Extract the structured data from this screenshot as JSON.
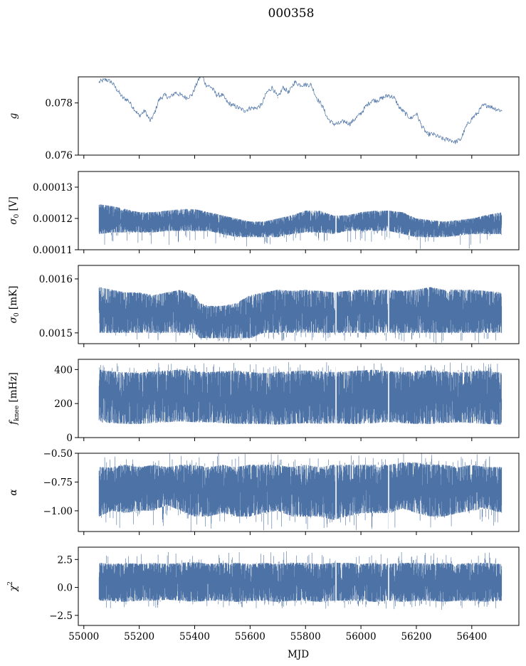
{
  "figure": {
    "title": "000358",
    "xlabel": "MJD",
    "line_color": "#4c72a6"
  },
  "chart_data": [
    {
      "type": "line",
      "ylabel": "g",
      "ylabel_symbol": "g",
      "ylabel_sub": "",
      "ylabel_unit": "",
      "xlim": [
        54980,
        56570
      ],
      "ylim": [
        0.076,
        0.079
      ],
      "yticks": [
        0.076,
        0.078
      ],
      "ytick_labels": [
        "0.076",
        "0.078"
      ],
      "show_xticklabels": false,
      "style": "thin",
      "series": [
        {
          "x": [
            55055,
            55080,
            55100,
            55120,
            55140,
            55160,
            55180,
            55200,
            55220,
            55240,
            55255,
            55270,
            55290,
            55310,
            55330,
            55350,
            55370,
            55390,
            55410,
            55425,
            55440,
            55460,
            55480,
            55500,
            55520,
            55540,
            55560,
            55580,
            55600,
            55620,
            55640,
            55660,
            55680,
            55700,
            55720,
            55740,
            55760,
            55780,
            55800,
            55820,
            55840,
            55860,
            55880,
            55900,
            55920,
            55940,
            55960,
            55980,
            56000,
            56020,
            56040,
            56060,
            56080,
            56100,
            56120,
            56140,
            56160,
            56180,
            56200,
            56220,
            56240,
            56260,
            56280,
            56300,
            56320,
            56340,
            56360,
            56380,
            56400,
            56420,
            56440,
            56460,
            56480,
            56508
          ],
          "y": [
            0.0788,
            0.0789,
            0.0788,
            0.0785,
            0.0782,
            0.0781,
            0.0778,
            0.0775,
            0.0777,
            0.0773,
            0.0776,
            0.0781,
            0.0783,
            0.0782,
            0.0784,
            0.0783,
            0.0782,
            0.0783,
            0.0788,
            0.0791,
            0.0787,
            0.0786,
            0.0783,
            0.0783,
            0.078,
            0.0779,
            0.0778,
            0.0777,
            0.0778,
            0.0778,
            0.0779,
            0.0784,
            0.0786,
            0.0782,
            0.0786,
            0.0784,
            0.0788,
            0.0787,
            0.0787,
            0.0787,
            0.0782,
            0.0779,
            0.0774,
            0.0772,
            0.0772,
            0.0773,
            0.0772,
            0.0774,
            0.0776,
            0.0779,
            0.0781,
            0.0781,
            0.0782,
            0.0783,
            0.0782,
            0.0778,
            0.0776,
            0.0774,
            0.0776,
            0.0771,
            0.0768,
            0.0768,
            0.0767,
            0.0766,
            0.0766,
            0.0765,
            0.0766,
            0.0771,
            0.0774,
            0.0776,
            0.0779,
            0.0779,
            0.0778,
            0.0777
          ]
        }
      ]
    },
    {
      "type": "line",
      "ylabel": "σ0 [V]",
      "ylabel_symbol": "σ",
      "ylabel_sub": "0",
      "ylabel_unit": "[V]",
      "xlim": [
        54980,
        56570
      ],
      "ylim": [
        0.00011,
        0.000135
      ],
      "yticks": [
        0.00011,
        0.00012,
        0.00013
      ],
      "ytick_labels": [
        "0.00011",
        "0.00012",
        "0.00013"
      ],
      "show_xticklabels": false,
      "style": "band",
      "series": [
        {
          "x": [
            55055,
            55100,
            55150,
            55200,
            55250,
            55300,
            55350,
            55400,
            55450,
            55500,
            55550,
            55600,
            55650,
            55700,
            55750,
            55800,
            55850,
            55900,
            55950,
            56000,
            56050,
            56100,
            56150,
            56200,
            56250,
            56300,
            56350,
            56400,
            56450,
            56508
          ],
          "y_lower": [
            0.000115,
            0.0001155,
            0.0001155,
            0.0001155,
            0.0001155,
            0.000116,
            0.000116,
            0.000116,
            0.000116,
            0.000115,
            0.000114,
            0.000114,
            0.000114,
            0.000114,
            0.000115,
            0.0001155,
            0.0001155,
            0.000115,
            0.000116,
            0.000116,
            0.000116,
            0.000116,
            0.000115,
            0.000114,
            0.000114,
            0.000114,
            0.0001145,
            0.000115,
            0.000115,
            0.000115
          ],
          "y_upper": [
            0.0001245,
            0.000124,
            0.000123,
            0.000122,
            0.000122,
            0.0001225,
            0.000123,
            0.000123,
            0.000122,
            0.000121,
            0.00012,
            0.000119,
            0.000119,
            0.00012,
            0.000121,
            0.0001225,
            0.0001225,
            0.000121,
            0.000121,
            0.000122,
            0.0001225,
            0.0001225,
            0.000122,
            0.00012,
            0.0001195,
            0.000119,
            0.0001195,
            0.00012,
            0.000121,
            0.000122
          ],
          "extremes_low": [
            0.00011,
            0.0001115,
            0.0001125
          ]
        }
      ]
    },
    {
      "type": "line",
      "ylabel": "σ0 [mK]",
      "ylabel_symbol": "σ",
      "ylabel_sub": "0",
      "ylabel_unit": "[mK]",
      "xlim": [
        54980,
        56570
      ],
      "ylim": [
        0.00148,
        0.001625
      ],
      "yticks": [
        0.0015,
        0.0016
      ],
      "ytick_labels": [
        "0.0015",
        "0.0016"
      ],
      "show_xticklabels": false,
      "style": "band",
      "series": [
        {
          "x": [
            55055,
            55100,
            55150,
            55200,
            55250,
            55300,
            55350,
            55400,
            55420,
            55450,
            55500,
            55550,
            55600,
            55650,
            55700,
            55750,
            55800,
            55850,
            55900,
            55950,
            56000,
            56050,
            56100,
            56150,
            56200,
            56250,
            56300,
            56350,
            56400,
            56450,
            56508
          ],
          "y_lower": [
            0.0015,
            0.0015,
            0.0015,
            0.0015,
            0.0015,
            0.0015,
            0.0015,
            0.0015,
            0.00149,
            0.00149,
            0.00149,
            0.00149,
            0.00149,
            0.0015,
            0.0015,
            0.0015,
            0.0015,
            0.0015,
            0.0015,
            0.0015,
            0.0015,
            0.0015,
            0.0015,
            0.0015,
            0.0015,
            0.0015,
            0.0015,
            0.0015,
            0.0015,
            0.0015,
            0.0015
          ],
          "y_upper": [
            0.001585,
            0.00158,
            0.001575,
            0.001575,
            0.00157,
            0.001575,
            0.00158,
            0.00157,
            0.001555,
            0.00155,
            0.00155,
            0.001555,
            0.00157,
            0.001575,
            0.00158,
            0.001578,
            0.00158,
            0.001578,
            0.001575,
            0.001578,
            0.00158,
            0.00158,
            0.00158,
            0.001578,
            0.00158,
            0.001585,
            0.00158,
            0.00158,
            0.00158,
            0.001578,
            0.001575
          ],
          "extremes_low": [
            0.00148,
            0.001482,
            0.001485
          ]
        }
      ]
    },
    {
      "type": "line",
      "ylabel": "fknee [mHz]",
      "ylabel_symbol": "f",
      "ylabel_sub": "knee",
      "ylabel_unit": "[mHz]",
      "xlim": [
        54980,
        56570
      ],
      "ylim": [
        0,
        460
      ],
      "yticks": [
        0,
        200,
        400
      ],
      "ytick_labels": [
        "0",
        "200",
        "400"
      ],
      "show_xticklabels": false,
      "style": "band",
      "series": [
        {
          "x": [
            55055,
            55100,
            55150,
            55200,
            55250,
            55300,
            55350,
            55400,
            55450,
            55500,
            55550,
            55600,
            55650,
            55700,
            55750,
            55800,
            55850,
            55900,
            55950,
            56000,
            56050,
            56100,
            56150,
            56200,
            56250,
            56300,
            56350,
            56400,
            56450,
            56508
          ],
          "y_lower": [
            90,
            85,
            80,
            80,
            85,
            90,
            95,
            90,
            90,
            85,
            80,
            80,
            80,
            75,
            80,
            85,
            80,
            85,
            80,
            80,
            85,
            90,
            85,
            80,
            80,
            85,
            90,
            85,
            80,
            75
          ],
          "y_upper": [
            400,
            390,
            385,
            380,
            390,
            395,
            400,
            390,
            385,
            390,
            395,
            385,
            380,
            385,
            390,
            395,
            390,
            385,
            390,
            395,
            400,
            390,
            385,
            390,
            395,
            390,
            385,
            390,
            395,
            380
          ],
          "extremes_high": [
            445,
            440,
            438
          ]
        }
      ]
    },
    {
      "type": "line",
      "ylabel": "α",
      "ylabel_symbol": "α",
      "ylabel_sub": "",
      "ylabel_unit": "",
      "xlim": [
        54980,
        56570
      ],
      "ylim": [
        -1.18,
        -0.5
      ],
      "yticks": [
        -1.0,
        -0.75,
        -0.5
      ],
      "ytick_labels": [
        "−1.00",
        "−0.75",
        "−0.50"
      ],
      "show_xticklabels": false,
      "style": "band",
      "series": [
        {
          "x": [
            55055,
            55100,
            55150,
            55200,
            55250,
            55300,
            55350,
            55400,
            55450,
            55500,
            55550,
            55600,
            55650,
            55700,
            55750,
            55800,
            55850,
            55900,
            55950,
            56000,
            56050,
            56100,
            56150,
            56200,
            56250,
            56300,
            56350,
            56400,
            56450,
            56508
          ],
          "y_lower": [
            -1.05,
            -1.0,
            -1.02,
            -1.0,
            -1.0,
            -0.95,
            -1.0,
            -1.05,
            -1.05,
            -1.02,
            -1.05,
            -1.05,
            -1.02,
            -1.0,
            -1.05,
            -1.05,
            -1.05,
            -1.08,
            -1.05,
            -1.02,
            -1.02,
            -1.02,
            -0.98,
            -1.02,
            -1.05,
            -1.05,
            -1.02,
            -1.0,
            -0.98,
            -1.02
          ],
          "y_upper": [
            -0.62,
            -0.62,
            -0.6,
            -0.62,
            -0.6,
            -0.62,
            -0.6,
            -0.6,
            -0.62,
            -0.6,
            -0.62,
            -0.6,
            -0.6,
            -0.6,
            -0.62,
            -0.6,
            -0.62,
            -0.6,
            -0.6,
            -0.6,
            -0.6,
            -0.6,
            -0.58,
            -0.58,
            -0.6,
            -0.6,
            -0.62,
            -0.6,
            -0.62,
            -0.62
          ],
          "extremes_low": [
            -1.18,
            -1.17,
            -1.16
          ],
          "extremes_high": [
            -0.5,
            -0.52
          ]
        }
      ]
    },
    {
      "type": "line",
      "ylabel": "χ2",
      "ylabel_symbol": "χ",
      "ylabel_sub": "",
      "ylabel_sup": "2",
      "ylabel_unit": "",
      "xlim": [
        54980,
        56570
      ],
      "ylim": [
        -3.4,
        3.6
      ],
      "yticks": [
        -2.5,
        0.0,
        2.5
      ],
      "ytick_labels": [
        "−2.5",
        "0.0",
        "2.5"
      ],
      "show_xticklabels": true,
      "xticks": [
        55000,
        55200,
        55400,
        55600,
        55800,
        56000,
        56200,
        56400
      ],
      "xtick_labels": [
        "55000",
        "55200",
        "55400",
        "55600",
        "55800",
        "56000",
        "56200",
        "56400"
      ],
      "style": "band",
      "series": [
        {
          "x": [
            55055,
            55100,
            55150,
            55200,
            55250,
            55300,
            55350,
            55400,
            55450,
            55500,
            55550,
            55600,
            55650,
            55700,
            55750,
            55800,
            55850,
            55900,
            55950,
            56000,
            56050,
            56100,
            56150,
            56200,
            56250,
            56300,
            56350,
            56400,
            56450,
            56508
          ],
          "y_lower": [
            -1.2,
            -1.2,
            -1.3,
            -1.2,
            -1.2,
            -1.1,
            -1.2,
            -1.3,
            -1.2,
            -1.2,
            -1.3,
            -1.2,
            -1.2,
            -1.3,
            -1.2,
            -1.2,
            -1.3,
            -1.2,
            -1.2,
            -1.2,
            -1.3,
            -1.2,
            -1.3,
            -1.2,
            -1.2,
            -1.3,
            -1.2,
            -1.2,
            -1.3,
            -1.2
          ],
          "y_upper": [
            2.2,
            2.1,
            2.2,
            2.1,
            2.2,
            2.1,
            2.2,
            2.3,
            2.1,
            2.2,
            2.2,
            2.1,
            2.2,
            2.1,
            2.2,
            2.2,
            2.1,
            2.2,
            2.2,
            2.1,
            2.2,
            2.1,
            2.2,
            2.2,
            2.1,
            2.2,
            2.1,
            2.2,
            2.2,
            2.1
          ],
          "extremes_low": [
            -1.9,
            -1.8,
            -2.0
          ],
          "extremes_high": [
            3.2,
            3.3,
            3.1
          ]
        }
      ]
    }
  ]
}
